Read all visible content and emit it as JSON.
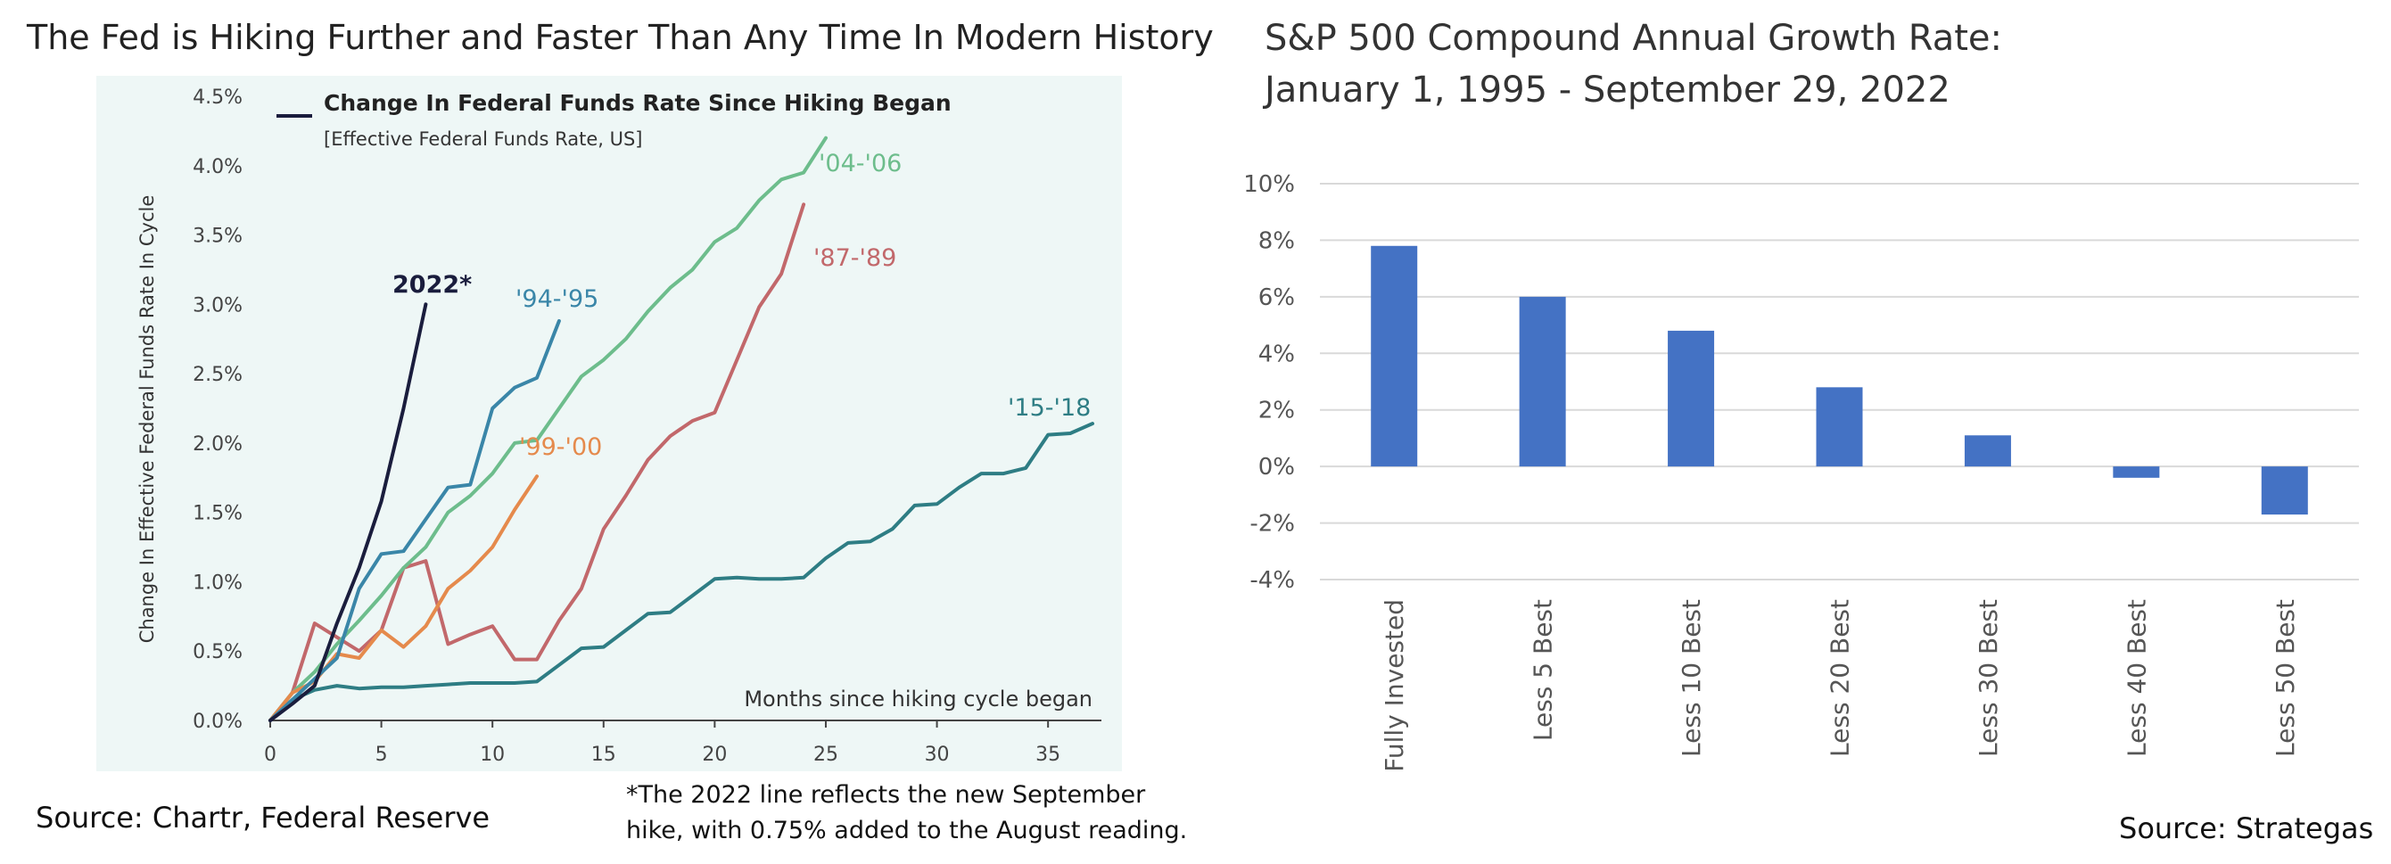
{
  "left_title": "The Fed is Hiking Further and Faster Than Any Time In Modern History",
  "right_title_line1": "S&P 500 Compound Annual Growth Rate:",
  "right_title_line2": "January 1, 1995 - September 29, 2022",
  "left_source": "Source: Chartr, Federal Reserve",
  "left_note": "*The 2022 line reflects the new September\nhike, with 0.75% added to the August reading.",
  "right_source": "Source: Strategas",
  "colors": {
    "panel_bg": "#eef7f6",
    "series_2022": "#1a1d3d",
    "series_9495": "#3a86a8",
    "series_9900": "#e58a4c",
    "series_0406": "#6dbd8c",
    "series_8789": "#c2686b",
    "series_1518": "#2e7d84",
    "bar": "#4472c4"
  },
  "chart_data": [
    {
      "type": "line",
      "title": "Change In Federal Funds Rate Since Hiking Began",
      "subtitle": "[Effective Federal Funds Rate, US]",
      "xlabel": "Months since hiking cycle began",
      "ylabel": "Change In Effective Federal Funds Rate In Cycle",
      "xlim": [
        0,
        37
      ],
      "ylim": [
        0,
        4.5
      ],
      "x_ticks": [
        "0",
        "5",
        "10",
        "15",
        "20",
        "25",
        "30",
        "35"
      ],
      "y_ticks": [
        "0.0%",
        "0.5%",
        "1.0%",
        "1.5%",
        "2.0%",
        "2.5%",
        "3.0%",
        "3.5%",
        "4.0%",
        "4.5%"
      ],
      "grid": false,
      "series": [
        {
          "name": "2022*",
          "color_key": "series_2022",
          "x": [
            0,
            1,
            2,
            3,
            4,
            5,
            6,
            7
          ],
          "y": [
            0,
            0.12,
            0.25,
            0.7,
            1.1,
            1.58,
            2.25,
            3.0
          ]
        },
        {
          "name": "'94-'95",
          "color_key": "series_9495",
          "x": [
            0,
            1,
            2,
            3,
            4,
            5,
            6,
            7,
            8,
            9,
            10,
            11,
            12,
            13
          ],
          "y": [
            0,
            0.15,
            0.3,
            0.45,
            0.95,
            1.2,
            1.22,
            1.45,
            1.68,
            1.7,
            2.25,
            2.4,
            2.47,
            2.88
          ]
        },
        {
          "name": "'99-'00",
          "color_key": "series_9900",
          "x": [
            0,
            1,
            2,
            3,
            4,
            5,
            6,
            7,
            8,
            9,
            10,
            11,
            12
          ],
          "y": [
            0,
            0.2,
            0.28,
            0.48,
            0.45,
            0.65,
            0.53,
            0.68,
            0.95,
            1.08,
            1.25,
            1.52,
            1.76
          ]
        },
        {
          "name": "'04-'06",
          "color_key": "series_0406",
          "x": [
            0,
            1,
            2,
            3,
            4,
            5,
            6,
            7,
            8,
            9,
            10,
            11,
            12,
            13,
            14,
            15,
            16,
            17,
            18,
            19,
            20,
            21,
            22,
            23,
            24,
            25
          ],
          "y": [
            0,
            0.2,
            0.35,
            0.55,
            0.72,
            0.9,
            1.1,
            1.25,
            1.5,
            1.62,
            1.78,
            2.0,
            2.02,
            2.25,
            2.48,
            2.6,
            2.75,
            2.95,
            3.12,
            3.25,
            3.45,
            3.55,
            3.75,
            3.9,
            3.95,
            4.2
          ]
        },
        {
          "name": "'87-'89",
          "color_key": "series_8789",
          "x": [
            0,
            1,
            2,
            3,
            4,
            5,
            6,
            7,
            8,
            9,
            10,
            11,
            12,
            13,
            14,
            15,
            16,
            17,
            18,
            19,
            20,
            21,
            22,
            23,
            24
          ],
          "y": [
            0,
            0.2,
            0.7,
            0.6,
            0.5,
            0.65,
            1.1,
            1.15,
            0.55,
            0.62,
            0.68,
            0.44,
            0.44,
            0.72,
            0.95,
            1.38,
            1.62,
            1.88,
            2.05,
            2.16,
            2.22,
            2.6,
            2.98,
            3.22,
            3.72
          ]
        },
        {
          "name": "'15-'18",
          "color_key": "series_1518",
          "x": [
            0,
            1,
            2,
            3,
            4,
            5,
            6,
            7,
            8,
            9,
            10,
            11,
            12,
            13,
            14,
            15,
            16,
            17,
            18,
            19,
            20,
            21,
            22,
            23,
            24,
            25,
            26,
            27,
            28,
            29,
            30,
            31,
            32,
            33,
            34,
            35,
            36,
            37
          ],
          "y": [
            0,
            0.15,
            0.22,
            0.25,
            0.23,
            0.24,
            0.24,
            0.25,
            0.26,
            0.27,
            0.27,
            0.27,
            0.28,
            0.4,
            0.52,
            0.53,
            0.65,
            0.77,
            0.78,
            0.9,
            1.02,
            1.03,
            1.02,
            1.02,
            1.03,
            1.17,
            1.28,
            1.29,
            1.38,
            1.55,
            1.56,
            1.68,
            1.78,
            1.78,
            1.82,
            2.06,
            2.07,
            2.14
          ]
        }
      ]
    },
    {
      "type": "bar",
      "categories": [
        "Fully Invested",
        "Less 5 Best",
        "Less 10 Best",
        "Less 20 Best",
        "Less 30 Best",
        "Less 40 Best",
        "Less 50 Best"
      ],
      "values": [
        7.8,
        6.0,
        4.8,
        2.8,
        1.1,
        -0.4,
        -1.7
      ],
      "ylim": [
        -4,
        10
      ],
      "y_ticks": [
        "10%",
        "8%",
        "6%",
        "4%",
        "2%",
        "0%",
        "-2%",
        "-4%"
      ],
      "grid": true
    }
  ]
}
